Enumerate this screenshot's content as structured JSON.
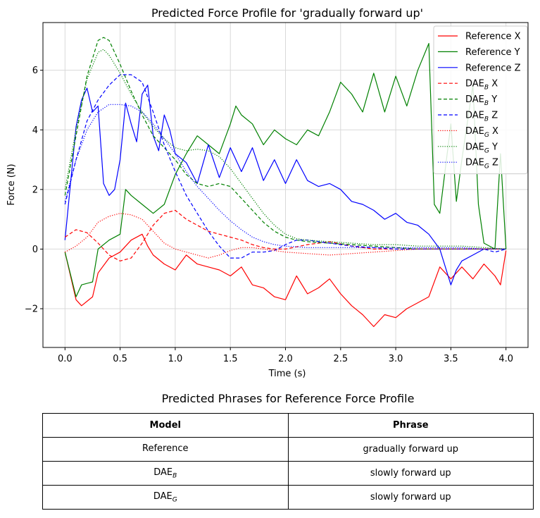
{
  "chart_data": {
    "type": "line",
    "title": "Predicted Force Profile for 'gradually forward up'",
    "xlabel": "Time (s)",
    "ylabel": "Force (N)",
    "xlim": [
      -0.2,
      4.2
    ],
    "ylim": [
      -3.3,
      7.6
    ],
    "xticks": [
      0.0,
      0.5,
      1.0,
      1.5,
      2.0,
      2.5,
      3.0,
      3.5,
      4.0
    ],
    "xtick_labels": [
      "0.0",
      "0.5",
      "1.0",
      "1.5",
      "2.0",
      "2.5",
      "3.0",
      "3.5",
      "4.0"
    ],
    "yticks": [
      -2,
      0,
      2,
      4,
      6
    ],
    "ytick_labels": [
      "−2",
      "0",
      "2",
      "4",
      "6"
    ],
    "grid": true,
    "legend_position": "top-right",
    "series": [
      {
        "name": "Reference X",
        "name_base": "Reference X",
        "name_sub": "",
        "name_suffix": "",
        "color": "#ff0000",
        "style": "solid",
        "x": [
          0,
          0.1,
          0.15,
          0.25,
          0.3,
          0.4,
          0.5,
          0.6,
          0.7,
          0.75,
          0.8,
          0.9,
          1.0,
          1.1,
          1.2,
          1.3,
          1.4,
          1.5,
          1.6,
          1.7,
          1.8,
          1.9,
          2.0,
          2.1,
          2.2,
          2.3,
          2.4,
          2.5,
          2.6,
          2.7,
          2.8,
          2.9,
          3.0,
          3.1,
          3.2,
          3.3,
          3.4,
          3.5,
          3.6,
          3.7,
          3.8,
          3.9,
          3.95,
          4.0
        ],
        "y": [
          -0.1,
          -1.7,
          -1.9,
          -1.6,
          -0.8,
          -0.3,
          -0.1,
          0.3,
          0.5,
          0.1,
          -0.2,
          -0.5,
          -0.7,
          -0.2,
          -0.5,
          -0.6,
          -0.7,
          -0.9,
          -0.6,
          -1.2,
          -1.3,
          -1.6,
          -1.7,
          -0.9,
          -1.5,
          -1.3,
          -1.0,
          -1.5,
          -1.9,
          -2.2,
          -2.6,
          -2.2,
          -2.3,
          -2.0,
          -1.8,
          -1.6,
          -0.6,
          -1.0,
          -0.6,
          -1.0,
          -0.5,
          -0.9,
          -1.2,
          -0.05
        ]
      },
      {
        "name": "Reference Y",
        "name_base": "Reference Y",
        "name_sub": "",
        "name_suffix": "",
        "color": "#008000",
        "style": "solid",
        "x": [
          0,
          0.1,
          0.15,
          0.25,
          0.3,
          0.4,
          0.5,
          0.55,
          0.6,
          0.7,
          0.8,
          0.9,
          1.0,
          1.1,
          1.2,
          1.3,
          1.4,
          1.5,
          1.55,
          1.6,
          1.7,
          1.8,
          1.9,
          2.0,
          2.1,
          2.2,
          2.3,
          2.4,
          2.5,
          2.6,
          2.7,
          2.8,
          2.9,
          3.0,
          3.1,
          3.2,
          3.3,
          3.35,
          3.4,
          3.5,
          3.55,
          3.6,
          3.7,
          3.75,
          3.8,
          3.9,
          3.95,
          4.0
        ],
        "y": [
          -0.1,
          -1.6,
          -1.2,
          -1.1,
          0.0,
          0.3,
          0.5,
          2.0,
          1.8,
          1.5,
          1.2,
          1.5,
          2.5,
          3.2,
          3.8,
          3.5,
          3.2,
          4.2,
          4.8,
          4.5,
          4.2,
          3.5,
          4.0,
          3.7,
          3.5,
          4.0,
          3.8,
          4.6,
          5.6,
          5.2,
          4.6,
          5.9,
          4.6,
          5.8,
          4.8,
          6.0,
          6.9,
          1.5,
          1.2,
          4.2,
          1.6,
          3.0,
          5.5,
          1.5,
          0.2,
          0.0,
          3.2,
          0.0
        ]
      },
      {
        "name": "Reference Z",
        "name_base": "Reference Z",
        "name_sub": "",
        "name_suffix": "",
        "color": "#0000ff",
        "style": "solid",
        "x": [
          0,
          0.1,
          0.15,
          0.2,
          0.25,
          0.3,
          0.35,
          0.4,
          0.45,
          0.5,
          0.55,
          0.6,
          0.65,
          0.7,
          0.75,
          0.8,
          0.85,
          0.9,
          0.95,
          1.0,
          1.1,
          1.2,
          1.3,
          1.4,
          1.5,
          1.6,
          1.7,
          1.8,
          1.9,
          2.0,
          2.1,
          2.2,
          2.3,
          2.4,
          2.5,
          2.6,
          2.7,
          2.8,
          2.9,
          3.0,
          3.1,
          3.2,
          3.3,
          3.4,
          3.5,
          3.55,
          3.6,
          3.7,
          3.8,
          3.9,
          4.0
        ],
        "y": [
          0.3,
          4.1,
          5.0,
          5.4,
          4.6,
          4.8,
          2.2,
          1.8,
          2.0,
          3.0,
          4.9,
          4.2,
          3.6,
          5.2,
          5.5,
          3.8,
          3.3,
          4.5,
          4.0,
          3.2,
          2.9,
          2.2,
          3.5,
          2.4,
          3.4,
          2.6,
          3.4,
          2.3,
          3.0,
          2.2,
          3.0,
          2.3,
          2.1,
          2.2,
          2.0,
          1.6,
          1.5,
          1.3,
          1.0,
          1.2,
          0.9,
          0.8,
          0.5,
          0.0,
          -1.2,
          -0.7,
          -0.4,
          -0.2,
          0.0,
          0.0,
          0.0
        ]
      },
      {
        "name": "DAE_B X",
        "name_base": "DAE",
        "name_sub": "B",
        "name_suffix": " X",
        "color": "#ff0000",
        "style": "dashed",
        "x": [
          0,
          0.1,
          0.2,
          0.3,
          0.4,
          0.5,
          0.6,
          0.7,
          0.8,
          0.9,
          1.0,
          1.1,
          1.2,
          1.3,
          1.4,
          1.5,
          1.6,
          1.7,
          1.8,
          1.9,
          2.0,
          2.2,
          2.4,
          2.6,
          2.8,
          3.0,
          3.2,
          3.4,
          3.6,
          3.8,
          4.0
        ],
        "y": [
          0.4,
          0.65,
          0.55,
          0.2,
          -0.2,
          -0.4,
          -0.3,
          0.2,
          0.8,
          1.2,
          1.3,
          1.0,
          0.8,
          0.6,
          0.5,
          0.4,
          0.3,
          0.15,
          0.05,
          0.0,
          0.0,
          0.15,
          0.25,
          0.1,
          0.0,
          0.0,
          0.0,
          0.0,
          0.0,
          0.0,
          0.0
        ]
      },
      {
        "name": "DAE_B Y",
        "name_base": "DAE",
        "name_sub": "B",
        "name_suffix": " Y",
        "color": "#008000",
        "style": "dashed",
        "x": [
          0,
          0.1,
          0.2,
          0.3,
          0.35,
          0.4,
          0.5,
          0.6,
          0.7,
          0.8,
          0.9,
          1.0,
          1.1,
          1.2,
          1.3,
          1.4,
          1.5,
          1.6,
          1.7,
          1.8,
          1.9,
          2.0,
          2.1,
          2.2,
          2.4,
          2.6,
          2.8,
          3.0,
          3.2,
          3.4,
          3.6,
          3.8,
          4.0
        ],
        "y": [
          1.8,
          3.8,
          5.8,
          7.0,
          7.1,
          7.0,
          6.2,
          5.3,
          4.5,
          3.8,
          3.4,
          3.0,
          2.5,
          2.2,
          2.1,
          2.2,
          2.1,
          1.7,
          1.3,
          0.9,
          0.6,
          0.4,
          0.3,
          0.25,
          0.2,
          0.15,
          0.1,
          0.05,
          0.0,
          0.0,
          0.0,
          0.0,
          0.0
        ]
      },
      {
        "name": "DAE_B Z",
        "name_base": "DAE",
        "name_sub": "B",
        "name_suffix": " Z",
        "color": "#0000ff",
        "style": "dashed",
        "x": [
          0,
          0.1,
          0.2,
          0.3,
          0.4,
          0.5,
          0.6,
          0.7,
          0.8,
          0.9,
          1.0,
          1.1,
          1.2,
          1.3,
          1.4,
          1.5,
          1.6,
          1.7,
          1.8,
          1.9,
          2.0,
          2.1,
          2.2,
          2.4,
          2.6,
          2.8,
          3.0,
          3.2,
          3.4,
          3.6,
          3.8,
          3.9,
          4.0
        ],
        "y": [
          1.5,
          3.0,
          4.3,
          5.0,
          5.5,
          5.85,
          5.85,
          5.6,
          4.6,
          3.5,
          2.6,
          1.8,
          1.2,
          0.6,
          0.1,
          -0.3,
          -0.3,
          -0.1,
          -0.1,
          -0.05,
          0.15,
          0.3,
          0.3,
          0.2,
          0.1,
          0.05,
          0.0,
          0.0,
          0.0,
          0.0,
          0.0,
          -0.1,
          0.0
        ]
      },
      {
        "name": "DAE_G X",
        "name_base": "DAE",
        "name_sub": "G",
        "name_suffix": " X",
        "color": "#ff0000",
        "style": "dotted",
        "x": [
          0,
          0.1,
          0.2,
          0.3,
          0.4,
          0.5,
          0.6,
          0.7,
          0.8,
          0.9,
          1.0,
          1.1,
          1.2,
          1.3,
          1.4,
          1.5,
          1.6,
          1.7,
          1.8,
          1.9,
          2.0,
          2.2,
          2.4,
          2.6,
          2.8,
          3.0,
          3.2,
          3.4,
          3.6,
          3.8,
          4.0
        ],
        "y": [
          -0.1,
          0.1,
          0.4,
          0.9,
          1.1,
          1.2,
          1.15,
          1.0,
          0.6,
          0.2,
          0.0,
          -0.1,
          -0.2,
          -0.3,
          -0.2,
          -0.05,
          0.05,
          0.05,
          0.0,
          -0.05,
          -0.1,
          -0.15,
          -0.2,
          -0.15,
          -0.1,
          -0.05,
          0.0,
          0.0,
          0.0,
          0.0,
          0.0
        ]
      },
      {
        "name": "DAE_G Y",
        "name_base": "DAE",
        "name_sub": "G",
        "name_suffix": " Y",
        "color": "#008000",
        "style": "dotted",
        "x": [
          0,
          0.1,
          0.2,
          0.3,
          0.35,
          0.4,
          0.5,
          0.6,
          0.7,
          0.8,
          0.9,
          1.0,
          1.1,
          1.2,
          1.3,
          1.4,
          1.5,
          1.6,
          1.7,
          1.8,
          1.9,
          2.0,
          2.1,
          2.2,
          2.4,
          2.6,
          2.8,
          3.0,
          3.2,
          3.4,
          3.6,
          3.8,
          4.0
        ],
        "y": [
          2.0,
          4.0,
          5.7,
          6.6,
          6.7,
          6.5,
          5.9,
          5.2,
          4.6,
          4.1,
          3.7,
          3.4,
          3.3,
          3.35,
          3.3,
          3.1,
          2.7,
          2.2,
          1.7,
          1.2,
          0.8,
          0.5,
          0.35,
          0.3,
          0.25,
          0.2,
          0.15,
          0.15,
          0.1,
          0.1,
          0.1,
          0.05,
          0.0
        ]
      },
      {
        "name": "DAE_G Z",
        "name_base": "DAE",
        "name_sub": "G",
        "name_suffix": " Z",
        "color": "#0000ff",
        "style": "dotted",
        "x": [
          0,
          0.1,
          0.2,
          0.3,
          0.4,
          0.5,
          0.6,
          0.7,
          0.8,
          0.9,
          1.0,
          1.1,
          1.2,
          1.3,
          1.4,
          1.5,
          1.6,
          1.7,
          1.8,
          1.9,
          2.0,
          2.2,
          2.4,
          2.6,
          2.8,
          3.0,
          3.2,
          3.4,
          3.6,
          3.8,
          4.0
        ],
        "y": [
          1.6,
          3.0,
          4.0,
          4.6,
          4.85,
          4.85,
          4.8,
          4.6,
          4.2,
          3.7,
          3.2,
          2.6,
          2.1,
          1.7,
          1.3,
          0.95,
          0.65,
          0.4,
          0.25,
          0.15,
          0.1,
          0.05,
          0.05,
          0.05,
          0.05,
          0.05,
          0.05,
          0.05,
          0.05,
          0.0,
          0.0
        ]
      }
    ]
  },
  "table": {
    "title": "Predicted Phrases for Reference Force Profile",
    "header": {
      "model": "Model",
      "phrase": "Phrase"
    },
    "rows": [
      {
        "model_base": "Reference",
        "model_sub": "",
        "phrase": "gradually forward up"
      },
      {
        "model_base": "DAE",
        "model_sub": "B",
        "phrase": "slowly forward up"
      },
      {
        "model_base": "DAE",
        "model_sub": "G",
        "phrase": "slowly forward up"
      }
    ]
  }
}
